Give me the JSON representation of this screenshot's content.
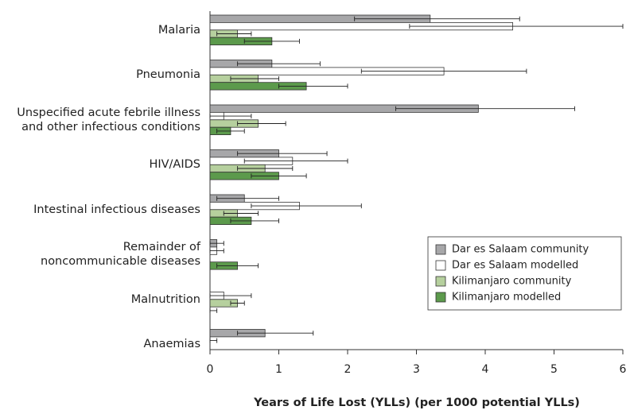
{
  "chart_data": {
    "type": "bar",
    "orientation": "horizontal",
    "x_label": "Years of Life Lost (YLLs) (per 1000 potential YLLs)",
    "categories": [
      "Malaria",
      "Pneumonia",
      "Unspecified acute febrile illness\nand other infectious conditions",
      "HIV/AIDS",
      "Intestinal infectious diseases",
      "Remainder of\nnoncommunicable diseases",
      "Malnutrition",
      "Anaemias"
    ],
    "series": [
      {
        "name": "Dar es Salaam community",
        "color": "#a7a7a9",
        "values": [
          3.2,
          0.9,
          3.9,
          1.0,
          0.5,
          0.1,
          null,
          0.8
        ],
        "ci": [
          [
            2.1,
            4.5
          ],
          [
            0.4,
            1.6
          ],
          [
            2.7,
            5.3
          ],
          [
            0.4,
            1.7
          ],
          [
            0.1,
            1.0
          ],
          [
            0,
            0.2
          ],
          null,
          [
            0.4,
            1.5
          ]
        ]
      },
      {
        "name": "Dar es Salaam modelled",
        "color": "#ffffff",
        "values": [
          4.4,
          3.4,
          0.2,
          1.2,
          1.3,
          0.1,
          0.2,
          0
        ],
        "ci": [
          [
            2.9,
            6.0
          ],
          [
            2.2,
            4.6
          ],
          [
            0,
            0.6
          ],
          [
            0.5,
            2.0
          ],
          [
            0.6,
            2.2
          ],
          [
            0,
            0.2
          ],
          [
            0,
            0.6
          ],
          [
            0,
            0.1
          ]
        ]
      },
      {
        "name": "Kilimanjaro community",
        "color": "#b6d09e",
        "values": [
          0.4,
          0.7,
          0.7,
          0.8,
          0.4,
          null,
          0.4,
          null
        ],
        "ci": [
          [
            0.1,
            0.6
          ],
          [
            0.3,
            1.0
          ],
          [
            0.4,
            1.1
          ],
          [
            0.4,
            1.2
          ],
          [
            0.2,
            0.7
          ],
          null,
          [
            0.3,
            0.5
          ],
          null
        ]
      },
      {
        "name": "Kilimanjaro modelled",
        "color": "#5c9a4c",
        "values": [
          0.9,
          1.4,
          0.3,
          1.0,
          0.6,
          0.4,
          0,
          null
        ],
        "ci": [
          [
            0.5,
            1.3
          ],
          [
            1.0,
            2.0
          ],
          [
            0.1,
            0.5
          ],
          [
            0.6,
            1.4
          ],
          [
            0.3,
            1.0
          ],
          [
            0.1,
            0.7
          ],
          [
            0,
            0.1
          ],
          null
        ]
      }
    ],
    "xlim": [
      0,
      6
    ],
    "xticks": [
      0,
      1,
      2,
      3,
      4,
      5,
      6
    ],
    "legend": "lower right"
  }
}
